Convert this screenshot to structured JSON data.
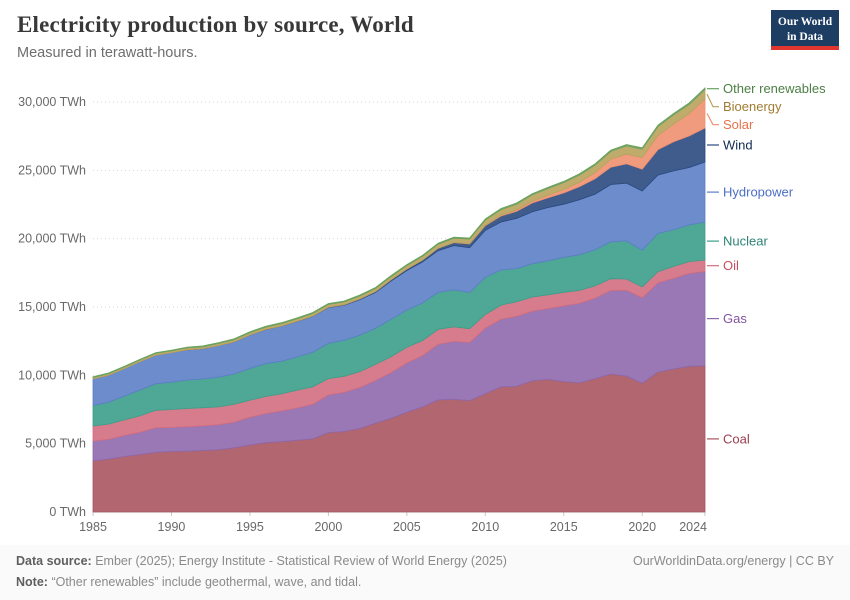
{
  "header": {
    "title": "Electricity production by source, World",
    "subtitle": "Measured in terawatt-hours.",
    "logo": {
      "line1": "Our World",
      "line2": "in Data",
      "bg": "#1d3d63",
      "accent": "#e1352f"
    }
  },
  "chart_data": {
    "type": "area",
    "stacked": true,
    "unit": "TWh",
    "title": "Electricity production by source, World",
    "grid": true,
    "legend_position": "right",
    "ylim": [
      0,
      30000
    ],
    "yticks": [
      0,
      5000,
      10000,
      15000,
      20000,
      25000,
      30000
    ],
    "ytick_labels": [
      "0 TWh",
      "5,000 TWh",
      "10,000 TWh",
      "15,000 TWh",
      "20,000 TWh",
      "25,000 TWh",
      "30,000 TWh"
    ],
    "xticks": [
      1985,
      1990,
      1995,
      2000,
      2005,
      2010,
      2015,
      2020,
      2024
    ],
    "x": [
      1985,
      1986,
      1987,
      1988,
      1989,
      1990,
      1991,
      1992,
      1993,
      1994,
      1995,
      1996,
      1997,
      1998,
      1999,
      2000,
      2001,
      2002,
      2003,
      2004,
      2005,
      2006,
      2007,
      2008,
      2009,
      2010,
      2011,
      2012,
      2013,
      2014,
      2015,
      2016,
      2017,
      2018,
      2019,
      2020,
      2021,
      2022,
      2023,
      2024
    ],
    "series": [
      {
        "name": "Coal",
        "color": "#a85561",
        "label_color": "#9a3e4f",
        "values": [
          3750,
          3870,
          4060,
          4210,
          4360,
          4430,
          4450,
          4500,
          4560,
          4700,
          4900,
          5070,
          5150,
          5250,
          5350,
          5810,
          5890,
          6110,
          6500,
          6860,
          7300,
          7680,
          8200,
          8250,
          8150,
          8650,
          9150,
          9200,
          9600,
          9700,
          9540,
          9450,
          9760,
          10100,
          9940,
          9420,
          10240,
          10460,
          10660,
          10700
        ]
      },
      {
        "name": "Gas",
        "color": "#8e69ad",
        "label_color": "#8455a0",
        "values": [
          1440,
          1450,
          1540,
          1630,
          1800,
          1750,
          1790,
          1800,
          1830,
          1870,
          2030,
          2130,
          2240,
          2360,
          2520,
          2750,
          2860,
          3000,
          3120,
          3340,
          3600,
          3760,
          4070,
          4230,
          4250,
          4800,
          4950,
          5120,
          5100,
          5180,
          5540,
          5810,
          5890,
          6110,
          6280,
          6250,
          6520,
          6630,
          6790,
          6900
        ]
      },
      {
        "name": "Oil",
        "color": "#d36e7f",
        "label_color": "#c64f61",
        "values": [
          1110,
          1110,
          1140,
          1200,
          1280,
          1320,
          1330,
          1330,
          1300,
          1320,
          1250,
          1250,
          1250,
          1300,
          1280,
          1200,
          1180,
          1160,
          1180,
          1170,
          1150,
          1100,
          1100,
          1070,
          1010,
          1000,
          1040,
          1070,
          1030,
          1010,
          990,
          960,
          910,
          860,
          830,
          800,
          820,
          880,
          870,
          840
        ]
      },
      {
        "name": "Nuclear",
        "color": "#3c9f89",
        "label_color": "#2e8376",
        "values": [
          1490,
          1600,
          1740,
          1890,
          1950,
          2000,
          2080,
          2100,
          2170,
          2210,
          2320,
          2400,
          2390,
          2430,
          2530,
          2580,
          2640,
          2660,
          2640,
          2740,
          2720,
          2750,
          2700,
          2700,
          2660,
          2720,
          2570,
          2420,
          2440,
          2490,
          2570,
          2600,
          2630,
          2700,
          2790,
          2680,
          2800,
          2680,
          2690,
          2770
        ]
      },
      {
        "name": "Hydropower",
        "color": "#5c7fc7",
        "label_color": "#4b6fc4",
        "values": [
          1950,
          1990,
          2020,
          2080,
          2090,
          2160,
          2220,
          2220,
          2320,
          2350,
          2460,
          2500,
          2570,
          2600,
          2640,
          2620,
          2560,
          2610,
          2630,
          2800,
          2900,
          3010,
          3060,
          3240,
          3270,
          3440,
          3510,
          3670,
          3800,
          3900,
          3880,
          4030,
          4070,
          4190,
          4220,
          4340,
          4270,
          4310,
          4200,
          4400
        ]
      },
      {
        "name": "Wind",
        "color": "#2a4a80",
        "label_color": "#122b52",
        "values": [
          0,
          0,
          0,
          1,
          2,
          4,
          4,
          5,
          6,
          7,
          8,
          9,
          12,
          16,
          21,
          31,
          38,
          52,
          63,
          85,
          104,
          133,
          171,
          221,
          276,
          346,
          437,
          525,
          645,
          712,
          831,
          960,
          1134,
          1270,
          1420,
          1590,
          1860,
          2130,
          2310,
          2490
        ]
      },
      {
        "name": "Solar",
        "color": "#f09070",
        "label_color": "#e8714a",
        "values": [
          0,
          0,
          0,
          0,
          0,
          0,
          0,
          0,
          0,
          1,
          1,
          1,
          1,
          1,
          1,
          1,
          1,
          2,
          2,
          3,
          4,
          5,
          7,
          12,
          20,
          32,
          63,
          97,
          132,
          190,
          256,
          328,
          444,
          574,
          705,
          845,
          1040,
          1300,
          1630,
          2130
        ]
      },
      {
        "name": "Bioenergy",
        "color": "#b8a35c",
        "label_color": "#a07c33",
        "values": [
          100,
          105,
          110,
          115,
          120,
          125,
          130,
          135,
          140,
          150,
          160,
          165,
          170,
          175,
          185,
          195,
          200,
          210,
          220,
          235,
          250,
          270,
          290,
          310,
          330,
          370,
          400,
          430,
          460,
          490,
          500,
          520,
          550,
          580,
          600,
          620,
          650,
          670,
          680,
          690
        ]
      },
      {
        "name": "Other renewables",
        "color": "#6aa25f",
        "label_color": "#4c7f44",
        "values": [
          50,
          52,
          54,
          56,
          58,
          58,
          60,
          62,
          62,
          64,
          64,
          66,
          68,
          68,
          70,
          72,
          72,
          74,
          74,
          76,
          76,
          78,
          80,
          82,
          82,
          85,
          86,
          88,
          90,
          92,
          94,
          96,
          98,
          100,
          102,
          104,
          106,
          108,
          110,
          112
        ]
      }
    ]
  },
  "footer": {
    "datasource_label": "Data source:",
    "datasource": "Ember (2025); Energy Institute - Statistical Review of World Energy (2025)",
    "rights": "OurWorldinData.org/energy | CC BY",
    "note_label": "Note:",
    "note": "“Other renewables” include geothermal, wave, and tidal."
  }
}
